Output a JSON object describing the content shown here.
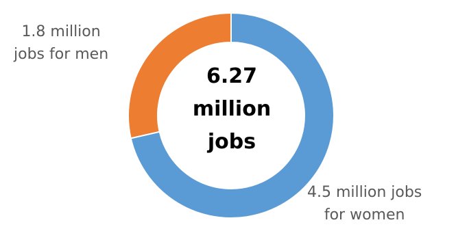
{
  "chart_data": {
    "type": "pie",
    "style": "donut",
    "center_label": [
      "6.27",
      "million",
      "jobs"
    ],
    "slices": [
      {
        "label_lines": [
          "1.8 million",
          "jobs for men"
        ],
        "value": 1.8,
        "color": "#ED7D31"
      },
      {
        "label_lines": [
          "4.5 million jobs",
          "for women"
        ],
        "value": 4.5,
        "color": "#5B9BD5"
      }
    ]
  }
}
